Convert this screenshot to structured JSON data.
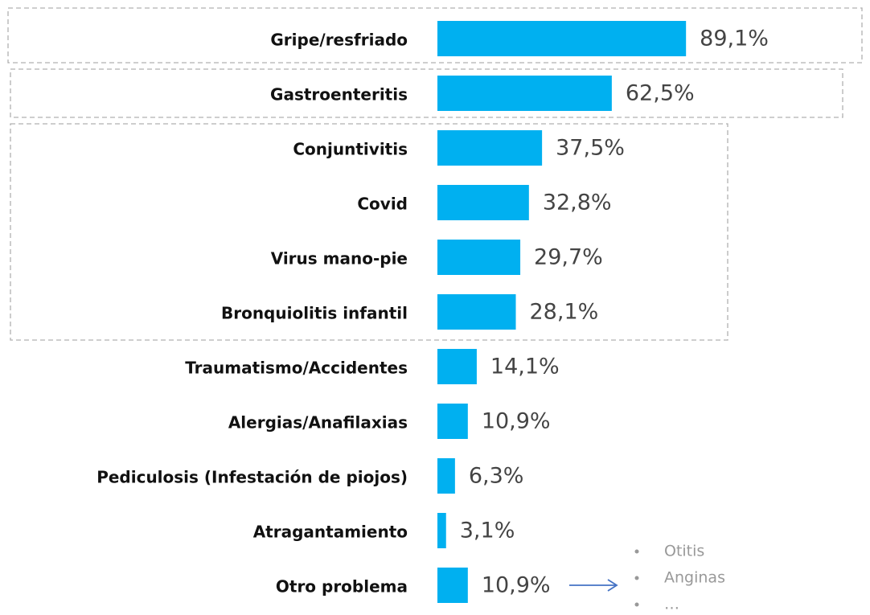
{
  "chart_data": {
    "type": "bar",
    "orientation": "horizontal",
    "categories": [
      "Gripe/resfriado",
      "Gastroenteritis",
      "Conjuntivitis",
      "Covid",
      "Virus mano-pie",
      "Bronquiolitis infantil",
      "Traumatismo/Accidentes",
      "Alergias/Anafilaxias",
      "Pediculosis (Infestación de piojos)",
      "Atragantamiento",
      "Otro problema"
    ],
    "values": [
      89.1,
      62.5,
      37.5,
      32.8,
      29.7,
      28.1,
      14.1,
      10.9,
      6.3,
      3.1,
      10.9
    ],
    "value_labels": [
      "89,1%",
      "62,5%",
      "37,5%",
      "32,8%",
      "29,7%",
      "28,1%",
      "14,1%",
      "10,9%",
      "6,3%",
      "3,1%",
      "10,9%"
    ],
    "color": "#00b0f0",
    "xlim": [
      0,
      100
    ],
    "annotations": [
      "Otitis",
      "Anginas",
      "…"
    ]
  }
}
